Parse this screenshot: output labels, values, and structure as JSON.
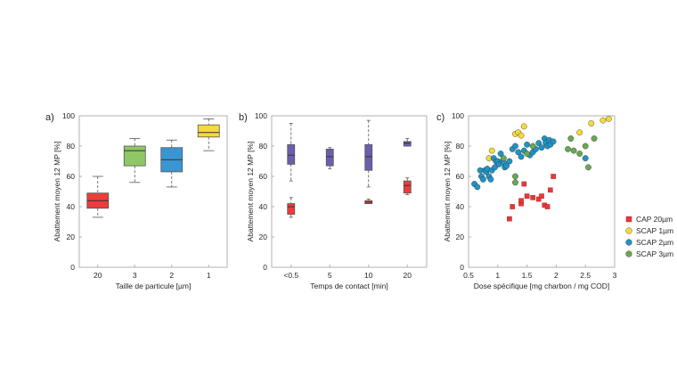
{
  "colors": {
    "cap20": "#e5393b",
    "scap1": "#f7d93a",
    "scap2": "#1f93c4",
    "scap3": "#6aa84f",
    "purple": "#6b5fad",
    "green": "#8fc766",
    "blue": "#3a96d2",
    "yellow": "#f7d93a",
    "red": "#ee3b3b"
  },
  "chart_data": [
    {
      "type": "box",
      "panel_label": "a)",
      "xlabel": "Taille de particule [µm]",
      "ylabel": "Abattement moyen 12 MP [%]",
      "ylim": [
        0,
        100
      ],
      "yticks": [
        "0",
        "20",
        "40",
        "60",
        "80",
        "100"
      ],
      "categories": [
        "20",
        "3",
        "2",
        "1"
      ],
      "boxes": [
        {
          "min": 33,
          "q1": 39,
          "median": 44,
          "q3": 49,
          "max": 60,
          "color": "red"
        },
        {
          "min": 56,
          "q1": 67,
          "median": 77,
          "q3": 80,
          "max": 85,
          "color": "green"
        },
        {
          "min": 53,
          "q1": 63,
          "median": 71,
          "q3": 79,
          "max": 84,
          "color": "blue"
        },
        {
          "min": 77,
          "q1": 86,
          "median": 89,
          "q3": 94,
          "max": 98,
          "color": "yellow"
        }
      ]
    },
    {
      "type": "box",
      "panel_label": "b)",
      "xlabel": "Temps de contact [min]",
      "ylabel": "Abattement moyen 12 MP [%]",
      "ylim": [
        0,
        100
      ],
      "yticks": [
        "0",
        "20",
        "40",
        "60",
        "80",
        "100"
      ],
      "categories": [
        "<0.5",
        "5",
        "10",
        "20"
      ],
      "boxes": [
        {
          "position": 0,
          "min": 57,
          "q1": 68,
          "median": 74,
          "q3": 81,
          "max": 95,
          "color": "purple"
        },
        {
          "position": 0,
          "min": 33,
          "q1": 35,
          "median": 40,
          "q3": 42,
          "max": 46,
          "color": "red"
        },
        {
          "position": 1,
          "min": 65,
          "q1": 67,
          "median": 73,
          "q3": 78,
          "max": 79,
          "color": "purple"
        },
        {
          "position": 2,
          "min": 53,
          "q1": 64,
          "median": 73,
          "q3": 81,
          "max": 97,
          "color": "purple"
        },
        {
          "position": 2,
          "min": 42,
          "q1": 42,
          "median": 43,
          "q3": 44,
          "max": 45,
          "color": "red"
        },
        {
          "position": 3,
          "min": 80,
          "q1": 80,
          "median": 82,
          "q3": 83,
          "max": 85,
          "color": "purple"
        },
        {
          "position": 3,
          "min": 48,
          "q1": 49,
          "median": 54,
          "q3": 57,
          "max": 59,
          "color": "red"
        }
      ]
    },
    {
      "type": "scatter",
      "panel_label": "c)",
      "xlabel": "Dose spécifique [mg charbon / mg COD]",
      "ylabel": "Abattement moyen 12 MP [%]",
      "xlim": [
        0.5,
        3
      ],
      "ylim": [
        0,
        100
      ],
      "xticks": [
        "0.5",
        "1",
        "1.5",
        "2",
        "2.5",
        "3"
      ],
      "yticks": [
        "0",
        "20",
        "40",
        "60",
        "80",
        "100"
      ],
      "series": [
        {
          "name": "CAP 20µm",
          "marker": "square",
          "color": "cap20",
          "points": [
            [
              1.2,
              32
            ],
            [
              1.25,
              40
            ],
            [
              1.4,
              42
            ],
            [
              1.4,
              44
            ],
            [
              1.45,
              55
            ],
            [
              1.5,
              47
            ],
            [
              1.6,
              46
            ],
            [
              1.7,
              45
            ],
            [
              1.75,
              47
            ],
            [
              1.8,
              41
            ],
            [
              1.85,
              40
            ],
            [
              1.9,
              51
            ],
            [
              1.95,
              60
            ]
          ]
        },
        {
          "name": "SCAP 1µm",
          "marker": "circle",
          "color": "scap1",
          "points": [
            [
              0.85,
              72
            ],
            [
              0.9,
              77
            ],
            [
              1.3,
              88
            ],
            [
              1.35,
              89
            ],
            [
              1.4,
              87
            ],
            [
              1.45,
              93
            ],
            [
              2.4,
              89
            ],
            [
              2.6,
              95
            ],
            [
              2.8,
              97
            ],
            [
              2.9,
              98
            ]
          ]
        },
        {
          "name": "SCAP 2µm",
          "marker": "circle",
          "color": "scap2",
          "points": [
            [
              0.6,
              55
            ],
            [
              0.65,
              53
            ],
            [
              0.7,
              64
            ],
            [
              0.72,
              60
            ],
            [
              0.75,
              58
            ],
            [
              0.78,
              64
            ],
            [
              0.8,
              63
            ],
            [
              0.82,
              65
            ],
            [
              0.85,
              60
            ],
            [
              0.88,
              58
            ],
            [
              0.9,
              64
            ],
            [
              0.93,
              72
            ],
            [
              0.95,
              66
            ],
            [
              0.97,
              70
            ],
            [
              1.0,
              70
            ],
            [
              1.02,
              68
            ],
            [
              1.05,
              75
            ],
            [
              1.08,
              70
            ],
            [
              1.1,
              69
            ],
            [
              1.12,
              66
            ],
            [
              1.15,
              67
            ],
            [
              1.2,
              70
            ],
            [
              1.25,
              78
            ],
            [
              1.3,
              80
            ],
            [
              1.35,
              76
            ],
            [
              1.4,
              73
            ],
            [
              1.45,
              77
            ],
            [
              1.5,
              81
            ],
            [
              1.55,
              74
            ],
            [
              1.6,
              76
            ],
            [
              1.65,
              78
            ],
            [
              1.7,
              82
            ],
            [
              1.75,
              79
            ],
            [
              1.8,
              85
            ],
            [
              1.82,
              82
            ],
            [
              1.85,
              80
            ],
            [
              1.88,
              84
            ],
            [
              1.9,
              81
            ],
            [
              1.95,
              83
            ],
            [
              2.5,
              72
            ]
          ]
        },
        {
          "name": "SCAP 3µm",
          "marker": "circle",
          "color": "scap3",
          "points": [
            [
              1.1,
              72
            ],
            [
              1.3,
              60
            ],
            [
              1.3,
              56
            ],
            [
              1.5,
              75
            ],
            [
              1.6,
              80
            ],
            [
              2.2,
              78
            ],
            [
              2.25,
              85
            ],
            [
              2.3,
              77
            ],
            [
              2.4,
              75
            ],
            [
              2.5,
              80
            ],
            [
              2.55,
              66
            ],
            [
              2.65,
              85
            ]
          ]
        }
      ],
      "legend_position": "right"
    }
  ]
}
